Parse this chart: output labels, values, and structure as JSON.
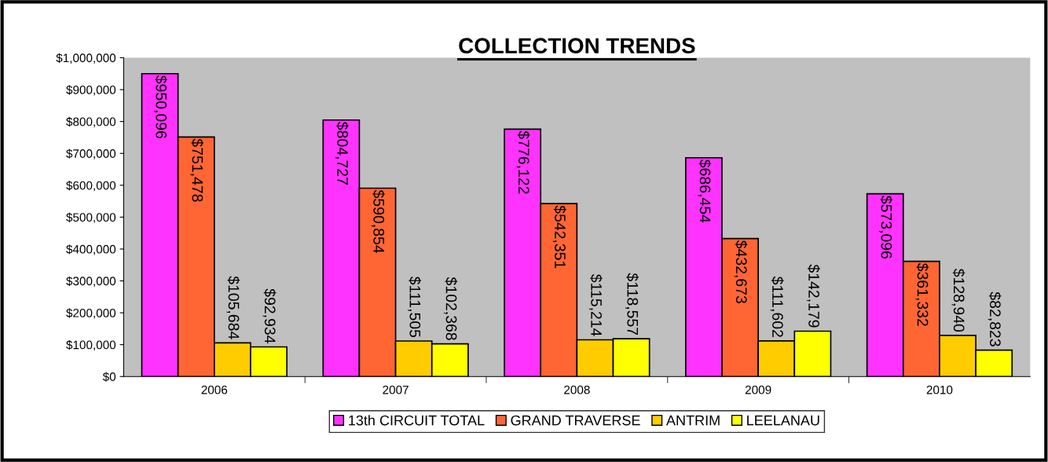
{
  "chart_data": {
    "type": "bar",
    "title": "COLLECTION TRENDS",
    "categories": [
      "2006",
      "2007",
      "2008",
      "2009",
      "2010"
    ],
    "series": [
      {
        "name": "13th CIRCUIT TOTAL",
        "color": "#ff33ff",
        "values": [
          950096,
          804727,
          776122,
          686454,
          573096
        ],
        "value_labels": [
          "$950,096",
          "$804,727",
          "$776,122",
          "$686,454",
          "$573,096"
        ]
      },
      {
        "name": "GRAND TRAVERSE",
        "color": "#ff6633",
        "values": [
          751478,
          590854,
          542351,
          432673,
          361332
        ],
        "value_labels": [
          "$751,478",
          "$590,854",
          "$542,351",
          "$432,673",
          "$361,332"
        ]
      },
      {
        "name": "ANTRIM",
        "color": "#ffcc00",
        "values": [
          105684,
          111505,
          115214,
          111602,
          128940
        ],
        "value_labels": [
          "$105,684",
          "$111,505",
          "$115,214",
          "$111,602",
          "$128,940"
        ]
      },
      {
        "name": "LEELANAU",
        "color": "#ffff00",
        "values": [
          92934,
          102368,
          118557,
          142179,
          82823
        ],
        "value_labels": [
          "$92,934",
          "$102,368",
          "$118,557",
          "$142,179",
          "$82,823"
        ]
      }
    ],
    "ylim": [
      0,
      1000000
    ],
    "yticks": [
      {
        "value": 0,
        "label": "$0"
      },
      {
        "value": 100000,
        "label": "$100,000"
      },
      {
        "value": 200000,
        "label": "$200,000"
      },
      {
        "value": 300000,
        "label": "$300,000"
      },
      {
        "value": 400000,
        "label": "$400,000"
      },
      {
        "value": 500000,
        "label": "$500,000"
      },
      {
        "value": 600000,
        "label": "$600,000"
      },
      {
        "value": 700000,
        "label": "$700,000"
      },
      {
        "value": 800000,
        "label": "$800,000"
      },
      {
        "value": 900000,
        "label": "$900,000"
      },
      {
        "value": 1000000,
        "label": "$1,000,000"
      }
    ],
    "grid": false,
    "legend": "bottom"
  }
}
